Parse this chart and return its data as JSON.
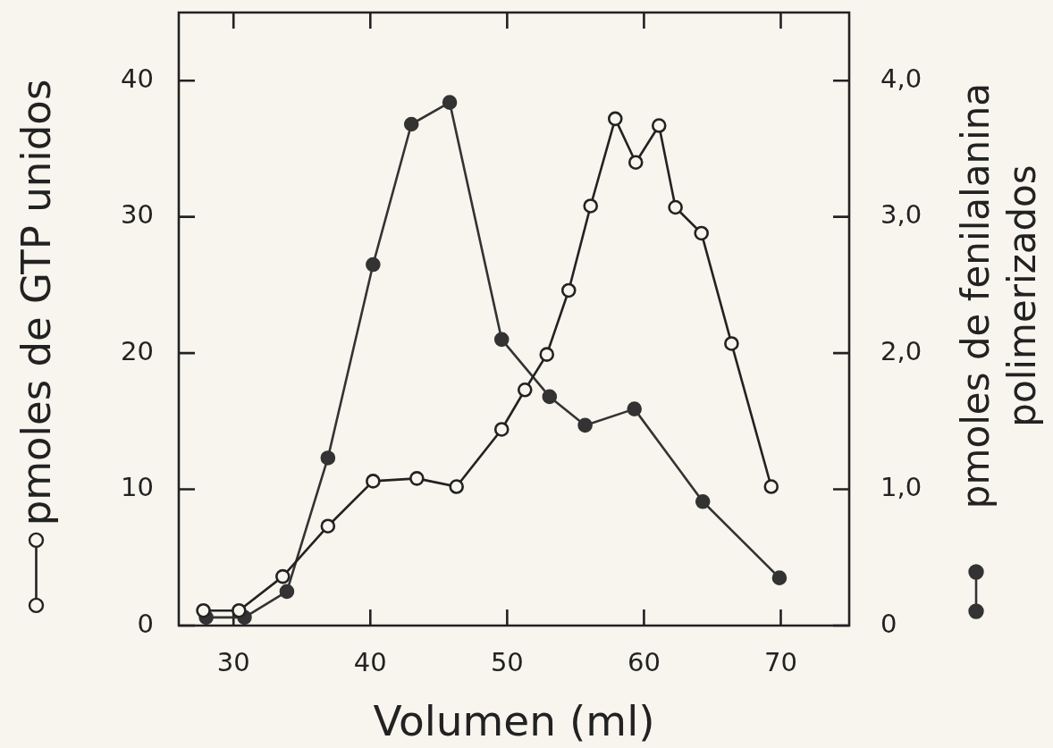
{
  "chart_data": {
    "type": "line",
    "xlabel": "Volumen (ml)",
    "ylabel": "pmoles de GTP unidos",
    "y2label": "pmoles de fenilalanina polimerizados",
    "marker": "circle",
    "xlim": [
      26,
      75
    ],
    "xticks": [
      30,
      40,
      50,
      60,
      70
    ],
    "ylim": [
      0,
      45
    ],
    "yticks": [
      0,
      10,
      20,
      30,
      40
    ],
    "y2lim": [
      0,
      4.5
    ],
    "y2ticks": [
      0,
      {
        "value": 1,
        "label": "1,0"
      },
      {
        "value": 2,
        "label": "2,0"
      },
      {
        "value": 3,
        "label": "3,0"
      },
      {
        "value": 4,
        "label": "4,0"
      }
    ],
    "series": [
      {
        "color": "#222222",
        "x": [
          27.8,
          30.4,
          33.6,
          36.9,
          40.2,
          43.4,
          46.3,
          49.6,
          51.3,
          52.9,
          54.5,
          56.1,
          57.9,
          59.4,
          61.1,
          62.3,
          64.2,
          66.4,
          69.3
        ],
        "values": [
          1.1,
          1.1,
          3.6,
          7.3,
          10.6,
          10.8,
          10.2,
          14.4,
          17.3,
          19.9,
          24.6,
          30.8,
          37.2,
          34.0,
          36.7,
          30.7,
          28.8,
          20.7,
          10.2
        ]
      },
      {
        "color": "#333333",
        "axis": "y2",
        "x": [
          28.0,
          30.8,
          33.9,
          36.9,
          40.2,
          43.0,
          45.8,
          49.6,
          53.1,
          55.7,
          59.3,
          64.3,
          69.9
        ],
        "values": [
          0.06,
          0.06,
          0.25,
          1.23,
          2.65,
          3.68,
          3.84,
          2.1,
          1.68,
          1.47,
          1.59,
          0.91,
          0.35
        ]
      }
    ]
  }
}
